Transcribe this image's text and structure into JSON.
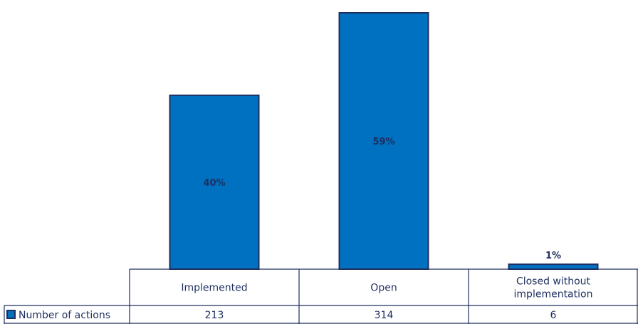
{
  "chart_data": {
    "type": "bar",
    "categories": [
      "Implemented",
      "Open",
      "Closed without implementation"
    ],
    "category_lines": [
      [
        "Implemented"
      ],
      [
        "Open"
      ],
      [
        "Closed without",
        "implementation"
      ]
    ],
    "series": [
      {
        "name": "Number of actions",
        "values": [
          213,
          314,
          6
        ]
      }
    ],
    "data_labels": [
      "40%",
      "59%",
      "1%"
    ],
    "table_values": [
      "213",
      "314",
      "6"
    ],
    "ylim": [
      0,
      314
    ],
    "grid": false,
    "legend": "data-table",
    "colors": {
      "bar": "#0070c0",
      "outline": "#1f2f5f",
      "text": "#1f2f5f"
    }
  }
}
